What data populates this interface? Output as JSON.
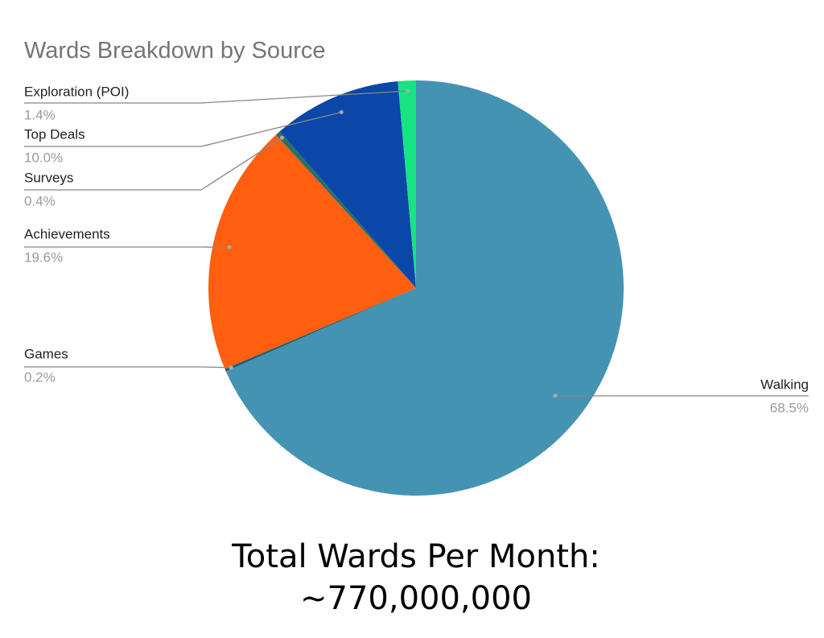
{
  "chart_data": {
    "type": "pie",
    "title": "Wards Breakdown by Source",
    "categories": [
      "Walking",
      "Games",
      "Achievements",
      "Surveys",
      "Top Deals",
      "Exploration (POI)"
    ],
    "values": [
      68.5,
      0.2,
      19.6,
      0.4,
      10.0,
      1.4
    ],
    "value_labels": [
      "68.5%",
      "0.2%",
      "19.6%",
      "0.4%",
      "10.0%",
      "1.4%"
    ],
    "colors": [
      "#4493b3",
      "#1d5f73",
      "#ff5f0f",
      "#2a6f66",
      "#0a47a8",
      "#17e383"
    ],
    "annotations": [
      "Total Wards Per Month:",
      "~770,000,000"
    ]
  }
}
